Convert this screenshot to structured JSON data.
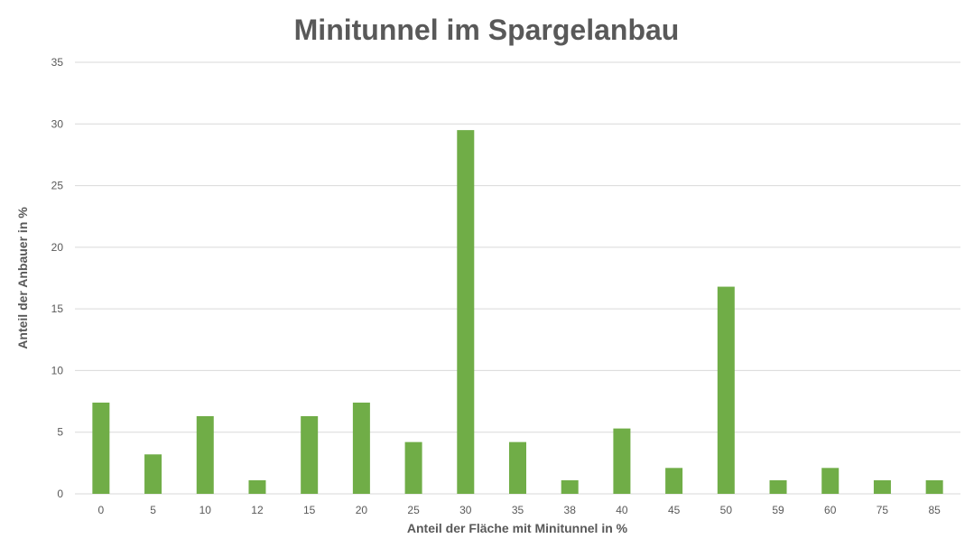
{
  "chart_data": {
    "type": "bar",
    "title": "Minitunnel im Spargelanbau",
    "xlabel": "Anteil der Fläche mit Minitunnel in %",
    "ylabel": "Anteil der Anbauer in %",
    "categories": [
      "0",
      "5",
      "10",
      "12",
      "15",
      "20",
      "25",
      "30",
      "35",
      "38",
      "40",
      "45",
      "50",
      "59",
      "60",
      "75",
      "85"
    ],
    "values": [
      7.4,
      3.2,
      6.3,
      1.1,
      6.3,
      7.4,
      4.2,
      29.5,
      4.2,
      1.1,
      5.3,
      2.1,
      16.8,
      1.1,
      2.1,
      1.1,
      1.1
    ],
    "ylim": [
      0,
      35
    ],
    "yticks": [
      "0",
      "5",
      "10",
      "15",
      "20",
      "25",
      "30",
      "35"
    ],
    "grid": true,
    "bar_color": "#70ad47",
    "text_color": "#595959",
    "grid_color": "#d9d9d9"
  }
}
